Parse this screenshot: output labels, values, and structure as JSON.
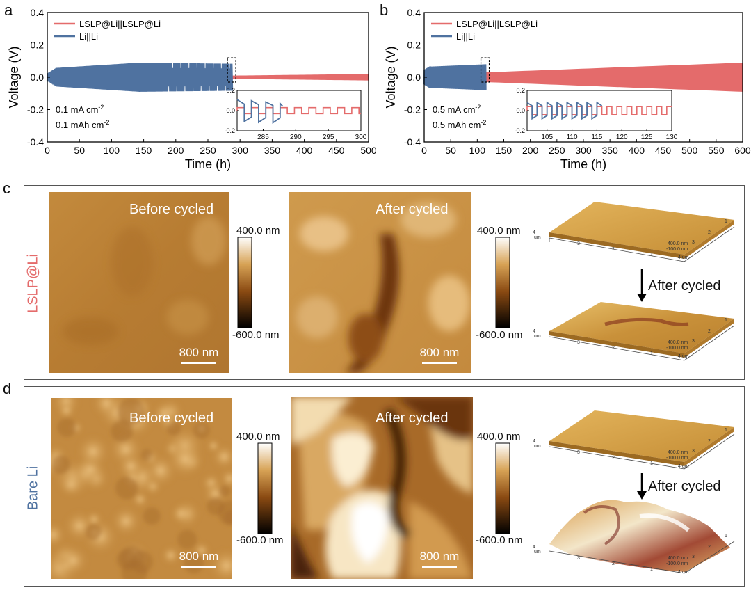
{
  "panels": {
    "a": "a",
    "b": "b",
    "c": "c",
    "d": "d"
  },
  "chart_data": [
    {
      "type": "line",
      "id": "a",
      "xlabel": "Time (h)",
      "ylabel": "Voltage (V)",
      "xlim": [
        0,
        500
      ],
      "ylim": [
        -0.4,
        0.4
      ],
      "xticks": [
        "0",
        "50",
        "100",
        "150",
        "200",
        "250",
        "300",
        "350",
        "400",
        "450",
        "500"
      ],
      "yticks": [
        "-0.4",
        "-0.2",
        "0.0",
        "0.2",
        "0.4"
      ],
      "legend": [
        "LSLP@Li||LSLP@Li",
        "Li||Li"
      ],
      "annotations": [
        "0.1 mA cm⁻²",
        "0.1 mAh cm⁻²"
      ],
      "series": [
        {
          "name": "LSLP@Li||LSLP@Li",
          "color": "#e46b6b",
          "end_time": 500,
          "envelope_start": 0.01,
          "envelope_end": 0.02
        },
        {
          "name": "Li||Li",
          "color": "#4f72a0",
          "end_time": 288,
          "envelope_peak": 0.09
        }
      ],
      "inset": {
        "xlim": [
          281,
          300
        ],
        "ylim": [
          -0.2,
          0.2
        ],
        "xticks": [
          "285",
          "290",
          "295",
          "300"
        ],
        "yticks": [
          "-0.2",
          "0.0",
          "0.2"
        ]
      }
    },
    {
      "type": "line",
      "id": "b",
      "xlabel": "Time (h)",
      "ylabel": "Voltage (V)",
      "xlim": [
        0,
        600
      ],
      "ylim": [
        -0.4,
        0.4
      ],
      "xticks": [
        "0",
        "50",
        "100",
        "150",
        "200",
        "250",
        "300",
        "350",
        "400",
        "450",
        "500",
        "550",
        "600"
      ],
      "yticks": [
        "-0.4",
        "-0.2",
        "0.0",
        "0.2",
        "0.4"
      ],
      "legend": [
        "LSLP@Li||LSLP@Li",
        "Li||Li"
      ],
      "annotations": [
        "0.5 mA cm⁻²",
        "0.5 mAh cm⁻²"
      ],
      "series": [
        {
          "name": "LSLP@Li||LSLP@Li",
          "color": "#e46b6b",
          "end_time": 600,
          "envelope_start": 0.03,
          "envelope_end": 0.09
        },
        {
          "name": "Li||Li",
          "color": "#4f72a0",
          "end_time": 116,
          "envelope_peak": 0.08
        }
      ],
      "inset": {
        "xlim": [
          101,
          130
        ],
        "ylim": [
          -0.2,
          0.2
        ],
        "xticks": [
          "105",
          "110",
          "115",
          "120",
          "125",
          "130"
        ],
        "yticks": [
          "-0.2",
          "0.0",
          "0.2"
        ]
      }
    }
  ],
  "afm": {
    "row_c_label": "LSLP@Li",
    "row_d_label": "Bare Li",
    "before": "Before cycled",
    "after": "After cycled",
    "scale": "800 nm",
    "cb_max": "400.0 nm",
    "cb_min": "-600.0 nm",
    "arrow_label": "After cycled",
    "axis3d": [
      "4",
      "um",
      "3",
      "2",
      "1",
      "400.0 nm",
      "-100.0 nm"
    ],
    "row_c_color": "#e46b6b",
    "row_d_color": "#4f72a0"
  }
}
